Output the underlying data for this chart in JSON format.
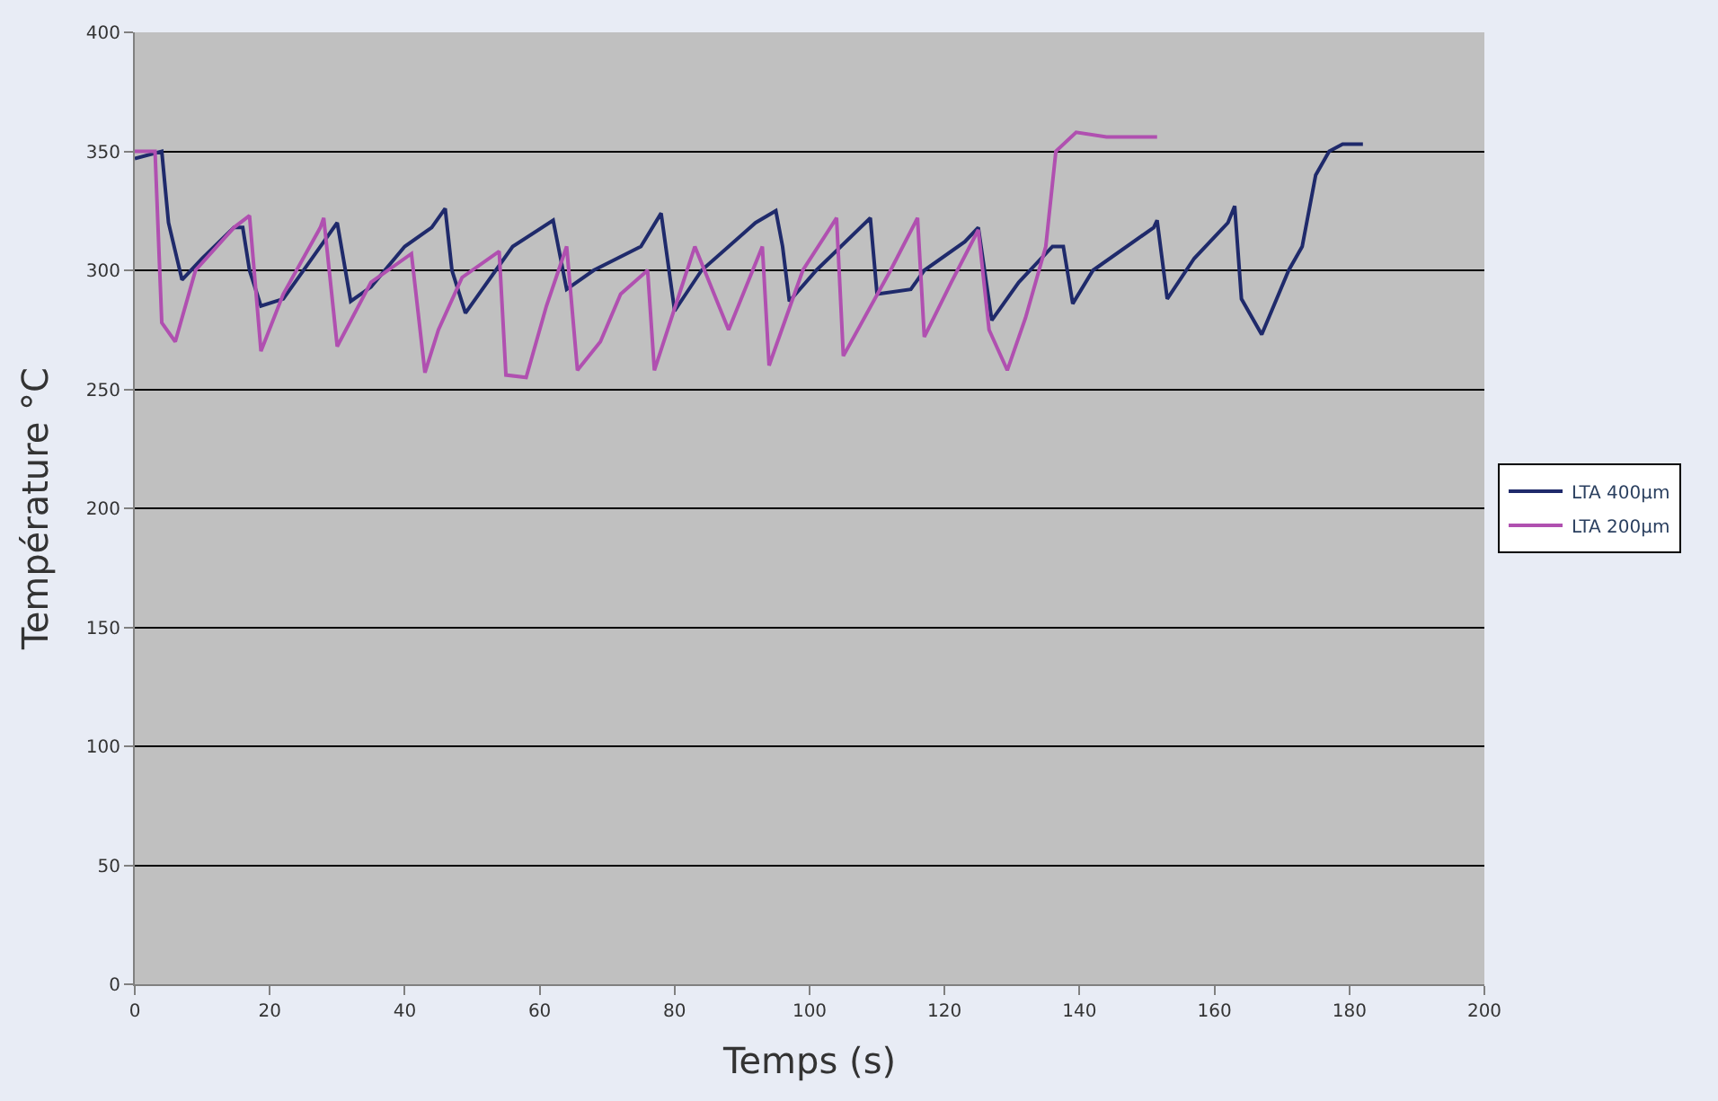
{
  "chart_data": {
    "type": "line",
    "xlabel": "Temps (s)",
    "ylabel": "Température °C",
    "xlim": [
      0,
      200
    ],
    "xticks": [
      0,
      20,
      40,
      60,
      80,
      100,
      120,
      140,
      160,
      180,
      200
    ],
    "ylim": [
      0,
      400
    ],
    "yticks": [
      0,
      50,
      100,
      150,
      200,
      250,
      300,
      350,
      400
    ],
    "grid": "y",
    "legend": "right",
    "marker": "none",
    "line_style": "solid",
    "series": [
      {
        "name": "LTA 400µm",
        "color": "#1f2a6b",
        "x": [
          0,
          4,
          5,
          7,
          10,
          14.7,
          16,
          17,
          18.7,
          22,
          27,
          30,
          32,
          35,
          40,
          44,
          46,
          47,
          49,
          56,
          62,
          64,
          68,
          75,
          78,
          80,
          84,
          92,
          95,
          96,
          97,
          101,
          109,
          110,
          115,
          117,
          123,
          125,
          127,
          131,
          136,
          137.6,
          139,
          142,
          151,
          151.5,
          153,
          157,
          162,
          163,
          164,
          167,
          171,
          173,
          175,
          177,
          179,
          182
        ],
        "values": [
          347,
          350,
          320,
          296,
          305,
          318,
          318,
          300,
          285,
          288,
          308,
          320,
          287,
          293,
          310,
          318,
          326,
          300,
          282,
          310,
          321,
          292,
          300,
          310,
          324,
          283,
          300,
          320,
          325,
          310,
          287,
          300,
          322,
          290,
          292,
          300,
          312,
          318,
          279,
          295,
          310,
          310,
          286,
          300,
          318,
          321,
          288,
          305,
          320,
          327,
          288,
          273,
          300,
          310,
          340,
          350,
          353,
          353
        ]
      },
      {
        "name": "LTA 200µm",
        "color": "#b050b0",
        "x": [
          0,
          3,
          4,
          6,
          9,
          14.7,
          17,
          18.7,
          22,
          27.5,
          28,
          30,
          35,
          41,
          43,
          45,
          48.5,
          54,
          55,
          58,
          61,
          64,
          65.6,
          69,
          72,
          76,
          77,
          83,
          88,
          93,
          94,
          99,
          104,
          105,
          112,
          116,
          117,
          121,
          125,
          126.6,
          129.3,
          132,
          135,
          136.5,
          139.5,
          144,
          151.5
        ],
        "values": [
          350,
          350,
          278,
          270,
          300,
          318,
          323,
          266,
          290,
          318,
          322,
          268,
          295,
          307,
          257,
          275,
          297,
          308,
          256,
          255,
          285,
          310,
          258,
          270,
          290,
          300,
          258,
          310,
          275,
          310,
          260,
          300,
          322,
          264,
          300,
          322,
          272,
          295,
          317,
          275,
          258,
          280,
          310,
          350,
          358,
          356,
          356
        ]
      }
    ]
  }
}
